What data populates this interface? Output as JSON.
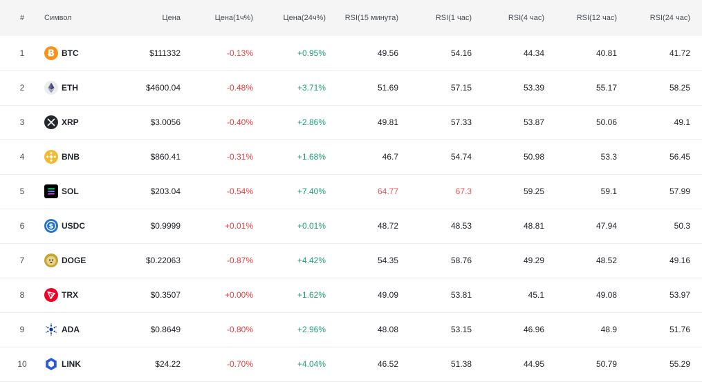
{
  "colors": {
    "negative": "#e63c3c",
    "positive": "#1a9c74",
    "overbought": "#e8565a",
    "header_bg": "#f5f5f5"
  },
  "table": {
    "headers": {
      "idx": "#",
      "symbol": "Символ",
      "price": "Цена",
      "change_1h": "Цена(1ч%)",
      "change_24h": "Цена(24ч%)",
      "rsi_15m": "RSI(15 минута)",
      "rsi_1h": "RSI(1 час)",
      "rsi_4h": "RSI(4 час)",
      "rsi_12h": "RSI(12 час)",
      "rsi_24h": "RSI(24 час)"
    },
    "rows": [
      {
        "idx": "1",
        "symbol": "BTC",
        "icon": "bitcoin-icon",
        "price": "$111332",
        "change_1h": "-0.13%",
        "change_24h": "+0.95%",
        "rsi_15m": "49.56",
        "rsi_1h": "54.16",
        "rsi_4h": "44.34",
        "rsi_12h": "40.81",
        "rsi_24h": "41.72"
      },
      {
        "idx": "2",
        "symbol": "ETH",
        "icon": "ethereum-icon",
        "price": "$4600.04",
        "change_1h": "-0.48%",
        "change_24h": "+3.71%",
        "rsi_15m": "51.69",
        "rsi_1h": "57.15",
        "rsi_4h": "53.39",
        "rsi_12h": "55.17",
        "rsi_24h": "58.25"
      },
      {
        "idx": "3",
        "symbol": "XRP",
        "icon": "xrp-icon",
        "price": "$3.0056",
        "change_1h": "-0.40%",
        "change_24h": "+2.86%",
        "rsi_15m": "49.81",
        "rsi_1h": "57.33",
        "rsi_4h": "53.87",
        "rsi_12h": "50.06",
        "rsi_24h": "49.1"
      },
      {
        "idx": "4",
        "symbol": "BNB",
        "icon": "bnb-icon",
        "price": "$860.41",
        "change_1h": "-0.31%",
        "change_24h": "+1.68%",
        "rsi_15m": "46.7",
        "rsi_1h": "54.74",
        "rsi_4h": "50.98",
        "rsi_12h": "53.3",
        "rsi_24h": "56.45"
      },
      {
        "idx": "5",
        "symbol": "SOL",
        "icon": "solana-icon",
        "price": "$203.04",
        "change_1h": "-0.54%",
        "change_24h": "+7.40%",
        "rsi_15m": "64.77",
        "rsi_1h": "67.3",
        "rsi_4h": "59.25",
        "rsi_12h": "59.1",
        "rsi_24h": "57.99"
      },
      {
        "idx": "6",
        "symbol": "USDC",
        "icon": "usdc-icon",
        "price": "$0.9999",
        "change_1h": "+0.01%",
        "change_24h": "+0.01%",
        "rsi_15m": "48.72",
        "rsi_1h": "48.53",
        "rsi_4h": "48.81",
        "rsi_12h": "47.94",
        "rsi_24h": "50.3"
      },
      {
        "idx": "7",
        "symbol": "DOGE",
        "icon": "dogecoin-icon",
        "price": "$0.22063",
        "change_1h": "-0.87%",
        "change_24h": "+4.42%",
        "rsi_15m": "54.35",
        "rsi_1h": "58.76",
        "rsi_4h": "49.29",
        "rsi_12h": "48.52",
        "rsi_24h": "49.16"
      },
      {
        "idx": "8",
        "symbol": "TRX",
        "icon": "tron-icon",
        "price": "$0.3507",
        "change_1h": "+0.00%",
        "change_24h": "+1.62%",
        "rsi_15m": "49.09",
        "rsi_1h": "53.81",
        "rsi_4h": "45.1",
        "rsi_12h": "49.08",
        "rsi_24h": "53.97"
      },
      {
        "idx": "9",
        "symbol": "ADA",
        "icon": "cardano-icon",
        "price": "$0.8649",
        "change_1h": "-0.80%",
        "change_24h": "+2.96%",
        "rsi_15m": "48.08",
        "rsi_1h": "53.15",
        "rsi_4h": "46.96",
        "rsi_12h": "48.9",
        "rsi_24h": "51.76"
      },
      {
        "idx": "10",
        "symbol": "LINK",
        "icon": "chainlink-icon",
        "price": "$24.22",
        "change_1h": "-0.70%",
        "change_24h": "+4.04%",
        "rsi_15m": "46.52",
        "rsi_1h": "51.38",
        "rsi_4h": "44.95",
        "rsi_12h": "50.79",
        "rsi_24h": "55.29"
      }
    ]
  }
}
